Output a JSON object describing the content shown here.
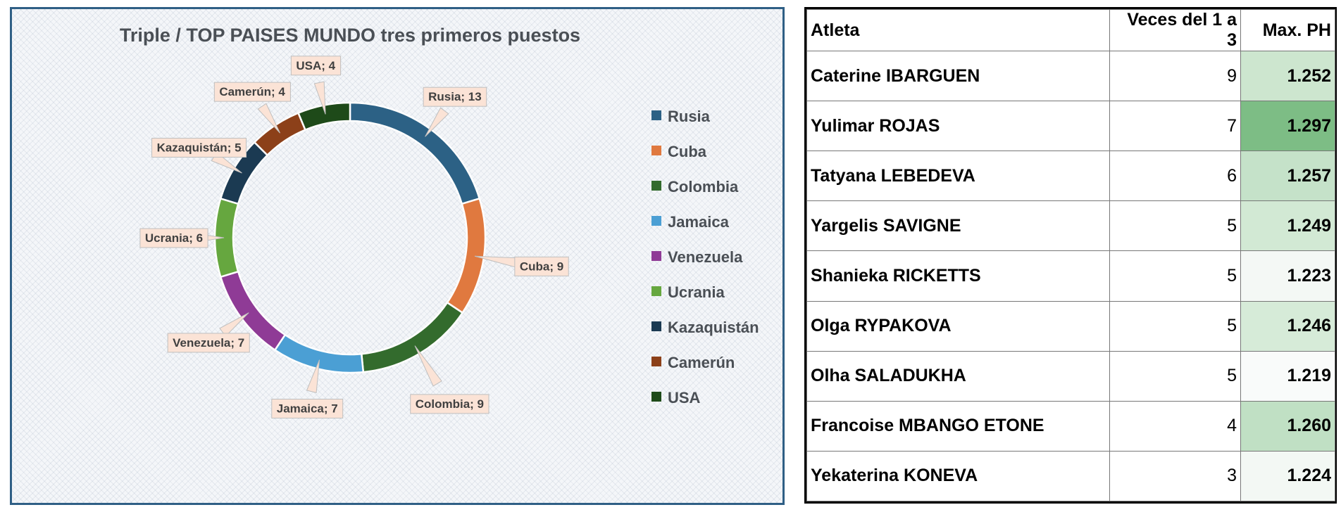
{
  "chart_data": {
    "type": "pie",
    "title": "Triple / TOP PAISES MUNDO tres primeros puestos",
    "categories": [
      "Rusia",
      "Cuba",
      "Colombia",
      "Jamaica",
      "Venezuela",
      "Ucrania",
      "Kazaquistán",
      "Camerún",
      "USA"
    ],
    "values": [
      13,
      9,
      9,
      7,
      7,
      6,
      5,
      4,
      4
    ],
    "colors": [
      "#2c6185",
      "#e0793f",
      "#336b2d",
      "#4b9fd4",
      "#8f3b96",
      "#66a73f",
      "#1b3a52",
      "#8c4019",
      "#1e4a19"
    ],
    "data_labels": [
      "Rusia; 13",
      "Cuba; 9",
      "Colombia; 9",
      "Jamaica; 7",
      "Venezuela; 7",
      "Ucrania; 6",
      "Kazaquistán; 5",
      "Camerún; 4",
      "USA; 4"
    ],
    "legend_position": "right",
    "hole": "donut"
  },
  "table": {
    "headers": [
      "Atleta",
      "Veces del 1 a 3",
      "Max. PH"
    ],
    "rows": [
      {
        "atleta": "Caterine IBARGUEN",
        "veces": "9",
        "max_ph": "1.252",
        "fill": "#cde6cf"
      },
      {
        "atleta": "Yulimar ROJAS",
        "veces": "7",
        "max_ph": "1.297",
        "fill": "#7dbd85"
      },
      {
        "atleta": "Tatyana LEBEDEVA",
        "veces": "6",
        "max_ph": "1.257",
        "fill": "#c5e2c9"
      },
      {
        "atleta": "Yargelis SAVIGNE",
        "veces": "5",
        "max_ph": "1.249",
        "fill": "#d2e9d4"
      },
      {
        "atleta": "Shanieka RICKETTS",
        "veces": "5",
        "max_ph": "1.223",
        "fill": "#f4f8f5"
      },
      {
        "atleta": "Olga RYPAKOVA",
        "veces": "5",
        "max_ph": "1.246",
        "fill": "#d6ebd8"
      },
      {
        "atleta": "Olha SALADUKHA",
        "veces": "5",
        "max_ph": "1.219",
        "fill": "#f9fbfa"
      },
      {
        "atleta": "Francoise MBANGO ETONE",
        "veces": "4",
        "max_ph": "1.260",
        "fill": "#c0e0c4"
      },
      {
        "atleta": "Yekaterina KONEVA",
        "veces": "3",
        "max_ph": "1.224",
        "fill": "#f3f8f4"
      }
    ]
  }
}
